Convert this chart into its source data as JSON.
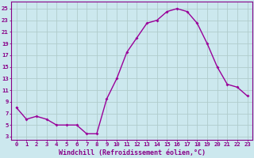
{
  "x": [
    0,
    1,
    2,
    3,
    4,
    5,
    6,
    7,
    8,
    9,
    10,
    11,
    12,
    13,
    14,
    15,
    16,
    17,
    18,
    19,
    20,
    21,
    22,
    23
  ],
  "y": [
    8,
    6,
    6.5,
    6,
    5,
    5,
    5,
    3.5,
    3.5,
    9.5,
    13,
    17.5,
    20,
    22.5,
    23,
    24.5,
    25,
    24.5,
    22.5,
    19,
    15,
    12,
    11.5,
    10
  ],
  "line_color": "#990099",
  "marker": "D",
  "marker_size": 2.0,
  "bg_color": "#cce8ee",
  "grid_color": "#b0cccc",
  "xlabel": "Windchill (Refroidissement éolien,°C)",
  "xlabel_color": "#880088",
  "ylabel_ticks": [
    3,
    5,
    7,
    9,
    11,
    13,
    15,
    17,
    19,
    21,
    23,
    25
  ],
  "ylim": [
    2.5,
    26.2
  ],
  "xlim": [
    -0.5,
    23.5
  ],
  "tick_color": "#880088",
  "spine_color": "#880088",
  "tick_fontsize": 5.2,
  "xlabel_fontsize": 6.0,
  "linewidth": 1.0
}
